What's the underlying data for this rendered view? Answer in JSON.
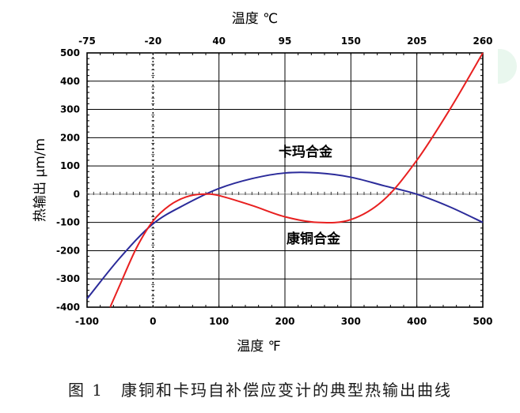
{
  "chart_data": {
    "type": "line",
    "xlabel_bottom": "温度 ℉",
    "xlabel_top": "温度 ℃",
    "ylabel": "热输出 μm/m",
    "x_bottom_ticks": [
      "-100",
      "0",
      "100",
      "200",
      "300",
      "400",
      "500"
    ],
    "x_top_ticks": [
      "-75",
      "-20",
      "40",
      "95",
      "150",
      "205",
      "260"
    ],
    "y_ticks": [
      "500",
      "400",
      "300",
      "200",
      "100",
      "0",
      "-100",
      "-200",
      "-300",
      "-400"
    ],
    "xlim": [
      -100,
      500
    ],
    "ylim": [
      -400,
      500
    ],
    "grid": true,
    "series": [
      {
        "name": "卡玛合金",
        "color": "#2b2b9a",
        "x": [
          -100,
          -50,
          0,
          50,
          100,
          150,
          200,
          250,
          300,
          350,
          400,
          450,
          500
        ],
        "y": [
          -370,
          -225,
          -105,
          -35,
          20,
          55,
          75,
          75,
          60,
          30,
          0,
          -45,
          -100
        ]
      },
      {
        "name": "康铜合金",
        "color": "#e82020",
        "x": [
          -65,
          -50,
          -25,
          0,
          25,
          50,
          75,
          100,
          150,
          200,
          250,
          300,
          350,
          400,
          450,
          500
        ],
        "y": [
          -400,
          -320,
          -190,
          -95,
          -40,
          -10,
          0,
          -5,
          -40,
          -80,
          -100,
          -90,
          -20,
          120,
          300,
          500
        ]
      }
    ]
  },
  "caption": "图 1　康铜和卡玛自补偿应变计的典型热输出曲线",
  "colors": {
    "grid": "#000000",
    "zero_line": "#999999",
    "accent": "#e9f7ee"
  }
}
